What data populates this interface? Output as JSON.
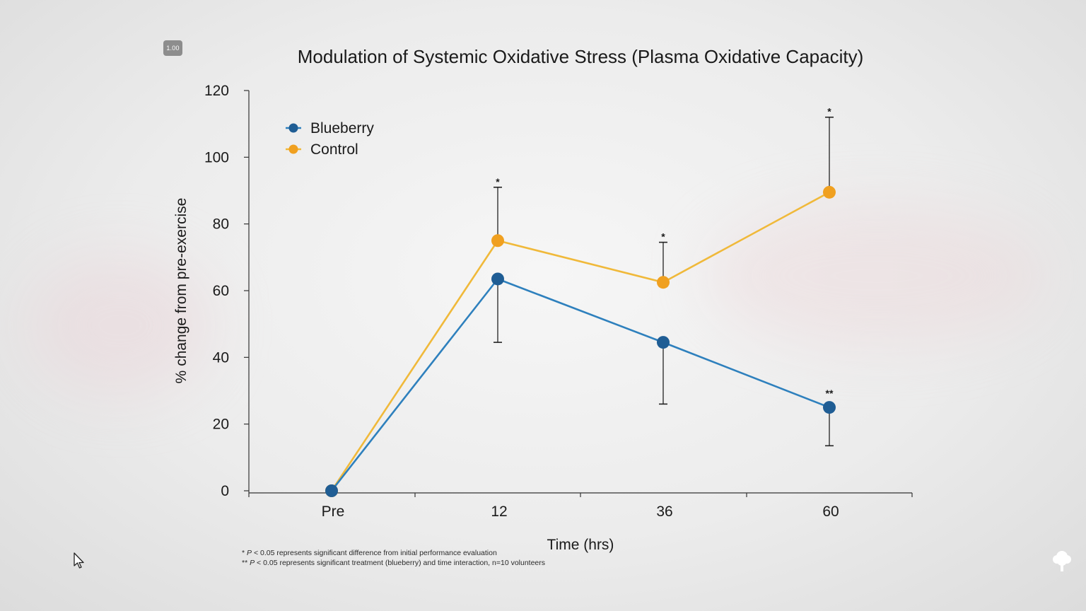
{
  "player": {
    "speed_badge": "1.00",
    "cursor_icon": "cursor-arrow-icon",
    "logo_icon": "tree-logo-icon"
  },
  "footnotes": [
    {
      "marker": "*",
      "p": "P",
      "text": " < 0.05 represents significant difference from initial performance evaluation"
    },
    {
      "marker": "**",
      "p": "P",
      "text": " < 0.05 represents significant treatment (blueberry) and time interaction, n=10 volunteers"
    }
  ],
  "chart_data": {
    "type": "line",
    "title": "Modulation of Systemic Oxidative Stress (Plasma Oxidative Capacity)",
    "xlabel": "Time (hrs)",
    "ylabel": "% change from pre-exercise",
    "categories": [
      "Pre",
      "12",
      "36",
      "60"
    ],
    "ylim": [
      0,
      120
    ],
    "yticks": [
      "0",
      "20",
      "40",
      "60",
      "80",
      "100",
      "120"
    ],
    "grid": false,
    "legend_position": "top-left",
    "series": [
      {
        "name": "Blueberry",
        "color": "#1f5d94",
        "line_color": "#2e80bd",
        "values": [
          0,
          63.5,
          44.5,
          25
        ],
        "error_upper": [
          null,
          null,
          null,
          null
        ],
        "error_lower": [
          null,
          44.5,
          26,
          13.5
        ],
        "significance": [
          "",
          "",
          "",
          "**"
        ]
      },
      {
        "name": "Control",
        "color": "#f0a020",
        "line_color": "#f0b93a",
        "values": [
          0,
          75,
          62.5,
          89.5
        ],
        "error_upper": [
          null,
          91,
          74.5,
          112
        ],
        "error_lower": [
          null,
          null,
          null,
          null
        ],
        "significance": [
          "",
          "*",
          "*",
          "*"
        ]
      }
    ]
  }
}
